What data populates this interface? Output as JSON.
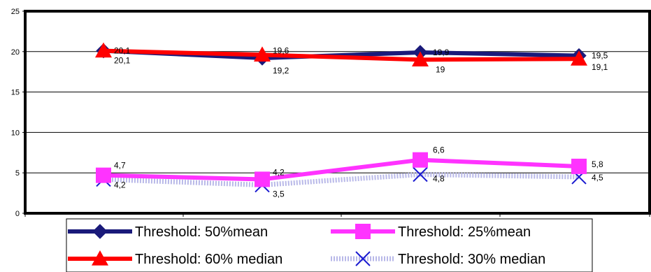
{
  "chart_data": {
    "type": "line",
    "title": "",
    "xlabel": "",
    "ylabel": "",
    "x": [
      "",
      "",
      "",
      ""
    ],
    "ylim": [
      0,
      25
    ],
    "yticks": [
      "0",
      "5",
      "10",
      "15",
      "20",
      "25"
    ],
    "grid": true,
    "legend_position": "bottom",
    "series": [
      {
        "name": "Threshold: 50%mean",
        "values": [
          20.1,
          19.2,
          19.9,
          19.5
        ],
        "labels": [
          "20,1",
          "19,2",
          "19,9",
          "19,5"
        ],
        "color": "#1a1a7a",
        "marker": "diamond"
      },
      {
        "name": "Threshold: 25%mean",
        "values": [
          4.7,
          4.2,
          6.6,
          5.8
        ],
        "labels": [
          "4,7",
          "4,2",
          "6,6",
          "5,8"
        ],
        "color": "#ff33ff",
        "marker": "square"
      },
      {
        "name": "Threshold: 60% median",
        "values": [
          20.1,
          19.6,
          19.0,
          19.1
        ],
        "labels": [
          "20,1",
          "19,6",
          "19",
          "19,1"
        ],
        "color": "#ff0000",
        "marker": "triangle"
      },
      {
        "name": "Threshold: 30% median",
        "values": [
          4.2,
          3.5,
          4.8,
          4.5
        ],
        "labels": [
          "4,2",
          "3,5",
          "4,8",
          "4,5"
        ],
        "color": "#b8b8e8",
        "marker": "x"
      }
    ]
  }
}
